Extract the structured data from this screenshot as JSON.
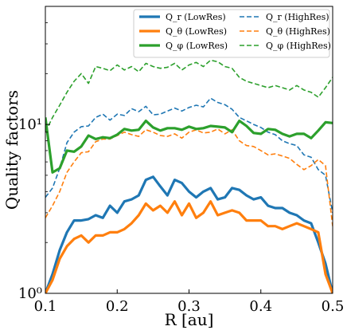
{
  "chart_data": {
    "type": "line",
    "xlabel": "R [au]",
    "ylabel": "Quality factors",
    "xlim": [
      0.1,
      0.5
    ],
    "ylim": [
      1,
      50
    ],
    "yscale": "log",
    "grid": false,
    "legend_position": "top-right",
    "legend_columns": 2,
    "xticks": [
      "0.1",
      "0.2",
      "0.3",
      "0.4",
      "0.5"
    ],
    "yticks": [
      {
        "value": 1,
        "label": "10⁰"
      },
      {
        "value": 10,
        "label": "10¹"
      }
    ],
    "colors": {
      "blue": "#1f77b4",
      "orange": "#ff7f0e",
      "green": "#2ca02c"
    },
    "series": [
      {
        "name": "Q_r (LowRes)",
        "color": "#1f77b4",
        "style": "solid",
        "x": [
          0.1,
          0.11,
          0.12,
          0.13,
          0.14,
          0.15,
          0.16,
          0.17,
          0.18,
          0.19,
          0.2,
          0.21,
          0.22,
          0.23,
          0.24,
          0.25,
          0.26,
          0.27,
          0.28,
          0.29,
          0.3,
          0.31,
          0.32,
          0.33,
          0.34,
          0.35,
          0.36,
          0.37,
          0.38,
          0.39,
          0.4,
          0.41,
          0.42,
          0.43,
          0.44,
          0.45,
          0.46,
          0.47,
          0.48,
          0.49,
          0.5
        ],
        "y": [
          1.0,
          1.3,
          1.8,
          2.3,
          2.7,
          2.7,
          2.75,
          2.9,
          2.8,
          3.3,
          3.0,
          3.5,
          3.6,
          3.8,
          4.7,
          4.9,
          4.3,
          3.8,
          4.7,
          4.5,
          4.0,
          3.7,
          4.0,
          4.2,
          3.6,
          3.7,
          4.2,
          4.1,
          3.8,
          3.6,
          3.7,
          3.3,
          3.2,
          3.2,
          3.0,
          2.9,
          2.7,
          2.6,
          2.0,
          1.5,
          1.0
        ]
      },
      {
        "name": "Q_θ (LowRes)",
        "color": "#ff7f0e",
        "style": "solid",
        "x": [
          0.1,
          0.11,
          0.12,
          0.13,
          0.14,
          0.15,
          0.16,
          0.17,
          0.18,
          0.19,
          0.2,
          0.21,
          0.22,
          0.23,
          0.24,
          0.25,
          0.26,
          0.27,
          0.28,
          0.29,
          0.3,
          0.31,
          0.32,
          0.33,
          0.34,
          0.35,
          0.36,
          0.37,
          0.38,
          0.39,
          0.4,
          0.41,
          0.42,
          0.43,
          0.44,
          0.45,
          0.46,
          0.47,
          0.48,
          0.49,
          0.5
        ],
        "y": [
          1.0,
          1.2,
          1.6,
          1.9,
          2.1,
          2.2,
          2.0,
          2.2,
          2.2,
          2.3,
          2.3,
          2.4,
          2.6,
          2.9,
          3.4,
          3.1,
          3.3,
          3.0,
          3.5,
          2.9,
          3.4,
          2.8,
          3.0,
          3.5,
          2.9,
          3.0,
          3.1,
          3.0,
          2.7,
          2.7,
          2.7,
          2.5,
          2.5,
          2.4,
          2.5,
          2.6,
          2.5,
          2.4,
          2.3,
          1.3,
          1.0
        ]
      },
      {
        "name": "Q_φ (LowRes)",
        "color": "#2ca02c",
        "style": "solid",
        "x": [
          0.1,
          0.11,
          0.12,
          0.13,
          0.14,
          0.15,
          0.16,
          0.17,
          0.18,
          0.19,
          0.2,
          0.21,
          0.22,
          0.23,
          0.24,
          0.25,
          0.26,
          0.27,
          0.28,
          0.29,
          0.3,
          0.31,
          0.32,
          0.33,
          0.34,
          0.35,
          0.36,
          0.37,
          0.38,
          0.39,
          0.4,
          0.41,
          0.42,
          0.43,
          0.44,
          0.45,
          0.46,
          0.47,
          0.48,
          0.49,
          0.5
        ],
        "y": [
          11.0,
          5.2,
          5.5,
          7.0,
          6.9,
          7.4,
          8.6,
          8.2,
          8.4,
          8.3,
          8.7,
          9.4,
          9.2,
          9.3,
          10.5,
          9.6,
          9.2,
          9.5,
          9.5,
          9.3,
          9.7,
          9.4,
          9.5,
          9.8,
          9.7,
          9.6,
          9.0,
          10.5,
          9.8,
          8.9,
          8.8,
          9.4,
          9.3,
          8.8,
          8.5,
          8.8,
          8.8,
          8.3,
          9.2,
          10.3,
          10.2
        ]
      },
      {
        "name": "Q_r (HighRes)",
        "color": "#1f77b4",
        "style": "dashed",
        "x": [
          0.1,
          0.11,
          0.12,
          0.13,
          0.14,
          0.15,
          0.16,
          0.17,
          0.18,
          0.19,
          0.2,
          0.21,
          0.22,
          0.23,
          0.24,
          0.25,
          0.26,
          0.27,
          0.28,
          0.29,
          0.3,
          0.31,
          0.32,
          0.33,
          0.34,
          0.35,
          0.36,
          0.37,
          0.38,
          0.39,
          0.4,
          0.41,
          0.42,
          0.43,
          0.44,
          0.45,
          0.46,
          0.47,
          0.48,
          0.49,
          0.5
        ],
        "y": [
          3.7,
          4.2,
          5.5,
          7.8,
          9.0,
          9.7,
          9.8,
          11.0,
          11.5,
          10.6,
          11.5,
          11.3,
          12.4,
          11.9,
          12.8,
          11.4,
          11.5,
          12.0,
          12.5,
          12.0,
          12.6,
          13.0,
          12.7,
          14.3,
          13.5,
          13.1,
          12.3,
          11.0,
          10.5,
          10.0,
          9.6,
          9.0,
          8.7,
          8.0,
          7.7,
          7.5,
          6.6,
          6.4,
          5.4,
          5.0,
          3.0
        ]
      },
      {
        "name": "Q_θ (HighRes)",
        "color": "#ff7f0e",
        "style": "dashed",
        "x": [
          0.1,
          0.11,
          0.12,
          0.13,
          0.14,
          0.15,
          0.16,
          0.17,
          0.18,
          0.19,
          0.2,
          0.21,
          0.22,
          0.23,
          0.24,
          0.25,
          0.26,
          0.27,
          0.28,
          0.29,
          0.3,
          0.31,
          0.32,
          0.33,
          0.34,
          0.35,
          0.36,
          0.37,
          0.38,
          0.39,
          0.4,
          0.41,
          0.42,
          0.43,
          0.44,
          0.45,
          0.46,
          0.47,
          0.48,
          0.49,
          0.5
        ],
        "y": [
          2.8,
          3.3,
          4.0,
          5.2,
          6.0,
          6.8,
          6.9,
          7.9,
          8.2,
          8.2,
          8.6,
          9.0,
          8.7,
          8.5,
          9.3,
          9.0,
          8.6,
          8.5,
          8.8,
          8.3,
          9.0,
          9.3,
          8.9,
          9.0,
          9.4,
          8.8,
          9.3,
          8.0,
          7.5,
          7.4,
          7.0,
          6.6,
          6.7,
          6.5,
          6.3,
          5.8,
          5.4,
          5.7,
          6.2,
          5.7,
          2.5
        ]
      },
      {
        "name": "Q_φ (HighRes)",
        "color": "#2ca02c",
        "style": "dashed",
        "x": [
          0.1,
          0.11,
          0.12,
          0.13,
          0.14,
          0.15,
          0.16,
          0.17,
          0.18,
          0.19,
          0.2,
          0.21,
          0.22,
          0.23,
          0.24,
          0.25,
          0.26,
          0.27,
          0.28,
          0.29,
          0.3,
          0.31,
          0.32,
          0.33,
          0.34,
          0.35,
          0.36,
          0.37,
          0.38,
          0.39,
          0.4,
          0.41,
          0.42,
          0.43,
          0.44,
          0.45,
          0.46,
          0.47,
          0.48,
          0.49,
          0.5
        ],
        "y": [
          9.0,
          11.0,
          13.0,
          15.5,
          18.0,
          20.0,
          17.5,
          22.0,
          21.5,
          20.8,
          22.5,
          21.0,
          22.0,
          20.5,
          23.0,
          22.0,
          21.5,
          21.8,
          23.0,
          21.0,
          22.5,
          23.3,
          22.0,
          24.0,
          23.5,
          22.0,
          21.5,
          19.0,
          18.0,
          17.5,
          17.0,
          16.5,
          17.0,
          16.5,
          16.0,
          17.0,
          16.0,
          15.5,
          14.5,
          16.5,
          19.0
        ]
      }
    ]
  }
}
